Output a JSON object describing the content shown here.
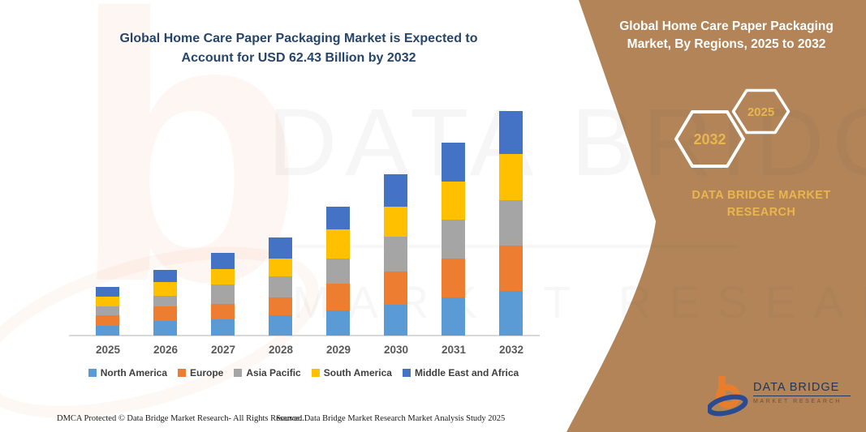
{
  "header": {
    "title_line1": "Global Home Care Paper Packaging Market is Expected to",
    "title_line2": "Account for USD 62.43 Billion by 2032"
  },
  "side_panel": {
    "background_color": "#B28457",
    "gold_color": "#E9B64E",
    "title_line1": "Global Home Care Paper Packaging",
    "title_line2": "Market, By Regions, 2025 to 2032",
    "hexagon_large_label": "2032",
    "hexagon_small_label": "2025",
    "brand_line1": "DATA BRIDGE MARKET",
    "brand_line2": "RESEARCH"
  },
  "chart_data": {
    "type": "bar",
    "stacked": true,
    "title": "Global Home Care Paper Packaging Market is Expected to Account for USD 62.43 Billion by 2032",
    "subtitle": "Global Home Care Paper Packaging Market, By Regions, 2025 to 2032",
    "unit": "USD Billion (estimated from bar heights; 2032 total = 62.43)",
    "categories": [
      "2025",
      "2026",
      "2027",
      "2028",
      "2029",
      "2030",
      "2031",
      "2032"
    ],
    "series": [
      {
        "name": "North America",
        "color": "#5B9BD5",
        "values": [
          2.8,
          4.1,
          4.5,
          5.6,
          7.0,
          8.6,
          10.6,
          12.5
        ]
      },
      {
        "name": "Europe",
        "color": "#ED7D31",
        "values": [
          2.8,
          4.1,
          4.3,
          5.1,
          7.5,
          9.2,
          10.7,
          12.6
        ]
      },
      {
        "name": "Asia Pacific",
        "color": "#A5A5A5",
        "values": [
          2.6,
          2.9,
          5.3,
          5.7,
          6.8,
          9.7,
          10.9,
          12.6
        ]
      },
      {
        "name": "South America",
        "color": "#FFC000",
        "values": [
          2.7,
          3.7,
          4.4,
          5.1,
          8.1,
          8.3,
          10.6,
          12.7
        ]
      },
      {
        "name": "Middle East and Africa",
        "color": "#4472C4",
        "values": [
          2.7,
          3.5,
          4.5,
          5.7,
          6.3,
          9.0,
          10.9,
          12.0
        ]
      }
    ],
    "totals": [
      13.6,
      18.3,
      23.0,
      27.2,
      35.7,
      44.8,
      53.7,
      62.4
    ],
    "xlabel": "",
    "ylabel": "",
    "axis": {
      "y_axis_visible": false,
      "gridlines": false,
      "legend_position": "bottom"
    }
  },
  "watermarks": {
    "big_letter": "b",
    "row1": "DATA BRIDGE",
    "row2": "MARKET RESEARCH"
  },
  "logo": {
    "name": "DATA BRIDGE",
    "subtitle": "MARKET RESEARCH"
  },
  "footer": {
    "left": "DMCA Protected © Data Bridge Market Research-  All Rights Reserved.",
    "right": "Source: Data Bridge Market Research  Market Analysis Study 2025"
  }
}
